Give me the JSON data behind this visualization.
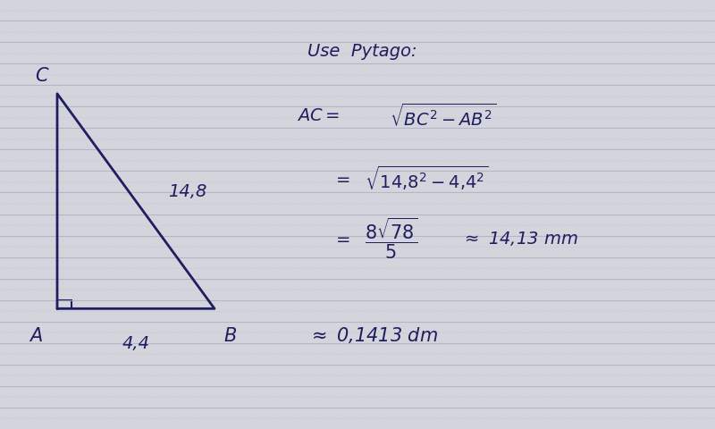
{
  "bg_color": "#d4d4dc",
  "line_color": "#a8b4c4",
  "ink_color": "#1e1e60",
  "fig_width": 8.0,
  "fig_height": 4.81,
  "dpi": 100,
  "triangle": {
    "A": [
      0.08,
      0.28
    ],
    "B": [
      0.3,
      0.28
    ],
    "C": [
      0.08,
      0.78
    ]
  },
  "label_A": "A",
  "label_B": "B",
  "label_C": "C",
  "label_AB": "4,4",
  "label_BC": "14,8",
  "use_pytago_text": "Use  Pytago:",
  "approx_mm": "14,13 mm",
  "approx_dm": "0,1413 dm",
  "num_lines": 20
}
